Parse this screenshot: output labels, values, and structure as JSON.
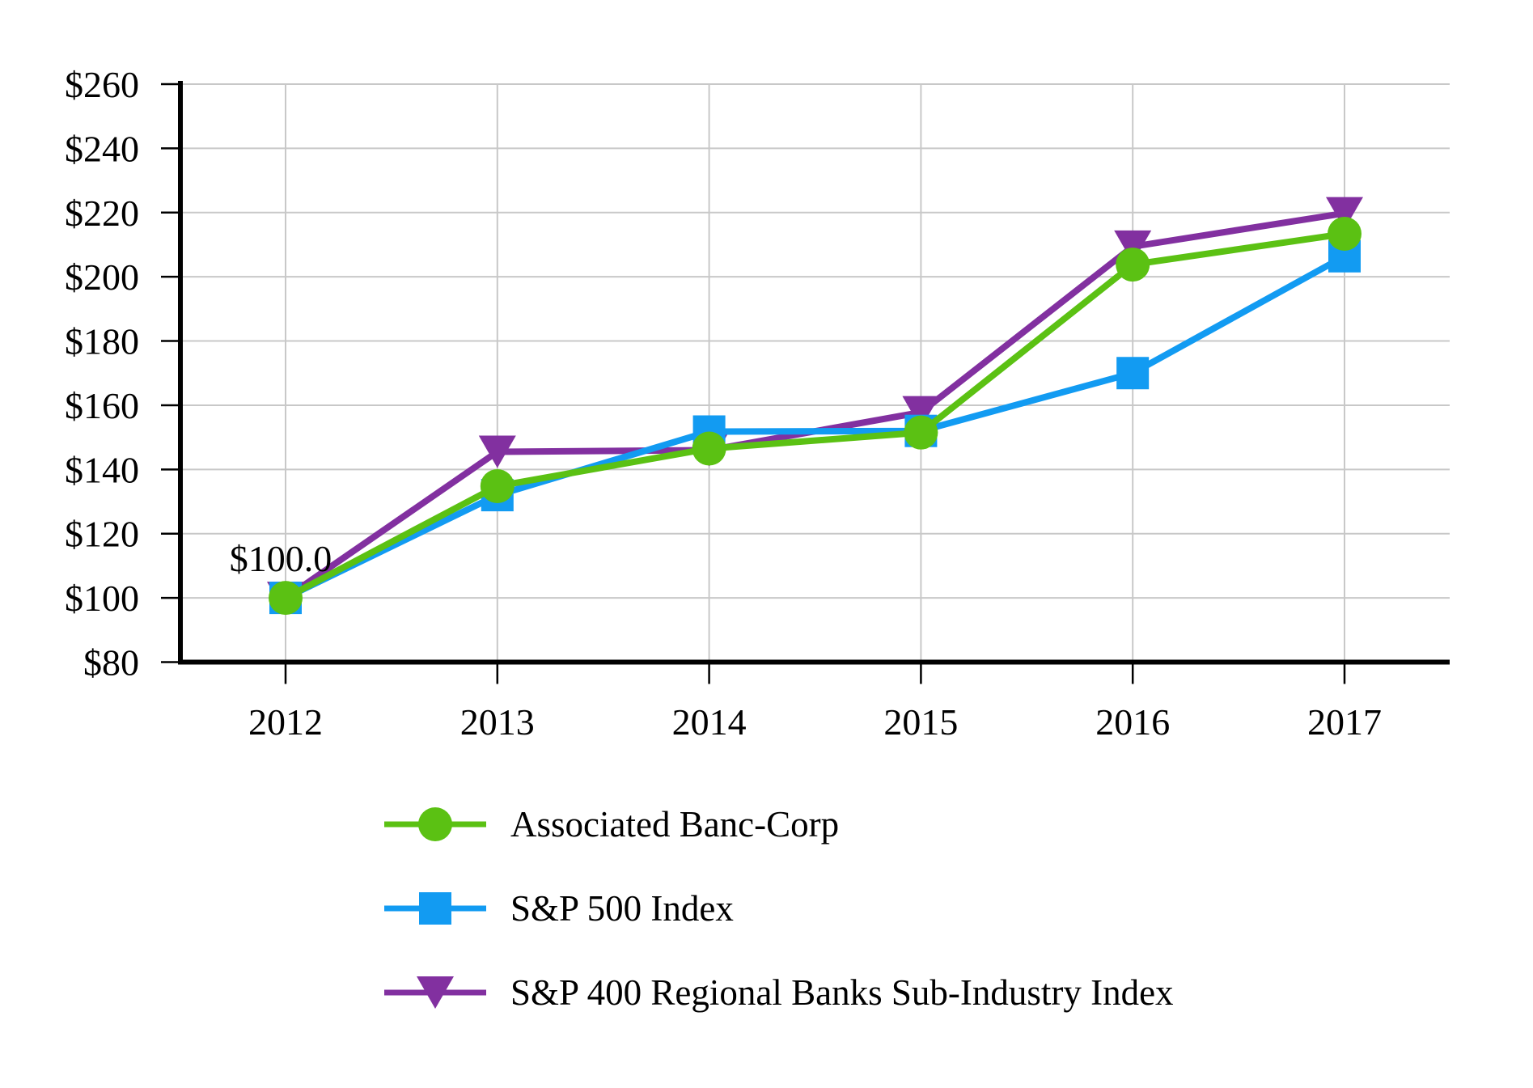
{
  "chart_data": {
    "type": "line",
    "title": "",
    "xlabel": "",
    "ylabel": "",
    "categories": [
      "2012",
      "2013",
      "2014",
      "2015",
      "2016",
      "2017"
    ],
    "series": [
      {
        "name": "Associated Banc-Corp",
        "marker": "circle",
        "color": "#5BC113",
        "values": [
          100.0,
          134.8,
          146.5,
          151.5,
          203.8,
          213.4
        ]
      },
      {
        "name": "S&P 500 Index",
        "marker": "square",
        "color": "#129BF2",
        "values": [
          100.0,
          132.0,
          151.8,
          152.0,
          170.0,
          206.4
        ]
      },
      {
        "name": "S&P 400 Regional Banks Sub-Industry Index",
        "marker": "triangle-down",
        "color": "#8230A0",
        "values": [
          100.0,
          145.5,
          146.0,
          157.8,
          209.4,
          219.8
        ]
      }
    ],
    "ylim": [
      80,
      260
    ],
    "ytick_step": 20,
    "ytick_prefix": "$",
    "grid": true,
    "legend_position": "bottom",
    "annotation": {
      "text": "$100.0",
      "at_category": "2012",
      "at_value": 100.0
    }
  },
  "colors": {
    "grid": "#C8C8C8",
    "axis": "#000000",
    "text": "#000000",
    "background": "#FFFFFF"
  }
}
